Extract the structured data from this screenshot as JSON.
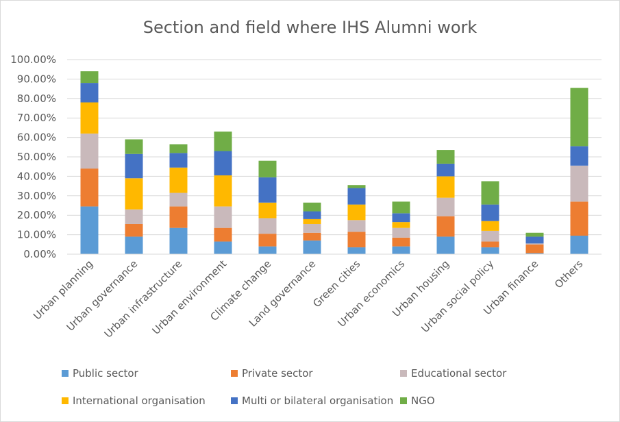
{
  "chart_data": {
    "type": "bar",
    "stacked": true,
    "title": "Section and field where IHS Alumni work",
    "categories": [
      "Urban planning",
      "Urban governance",
      "Urban infrastructure",
      "Urban environment",
      "Climate change",
      "Land governance",
      "Green cities",
      "Urban economics",
      "Urban housing",
      "Urban social policy",
      "Urban finance",
      "Others"
    ],
    "yticks": [
      "0.00%",
      "10.00%",
      "20.00%",
      "30.00%",
      "40.00%",
      "50.00%",
      "60.00%",
      "70.00%",
      "80.00%",
      "90.00%",
      "100.00%"
    ],
    "ylim": [
      0,
      100
    ],
    "grid": true,
    "legend_position": "bottom",
    "series": [
      {
        "name": "Public sector",
        "color": "#5b9bd5",
        "values": [
          24.5,
          9.0,
          13.5,
          6.5,
          4.0,
          7.0,
          3.5,
          4.0,
          9.0,
          3.5,
          0.5,
          9.5
        ]
      },
      {
        "name": "Private sector",
        "color": "#ed7d31",
        "values": [
          19.5,
          6.5,
          11.0,
          7.0,
          6.5,
          4.0,
          8.0,
          4.5,
          10.5,
          3.0,
          4.5,
          17.5
        ]
      },
      {
        "name": "Educational sector",
        "color": "#c9b9bb",
        "values": [
          18.0,
          7.5,
          7.0,
          11.0,
          8.0,
          4.5,
          6.0,
          5.0,
          9.5,
          5.5,
          0.5,
          18.5
        ]
      },
      {
        "name": "International organisation",
        "color": "#ffb800",
        "values": [
          16.0,
          16.0,
          13.0,
          16.0,
          8.0,
          2.5,
          8.0,
          3.0,
          11.0,
          5.0,
          0.0,
          0.0
        ]
      },
      {
        "name": "Multi or bilateral organisation",
        "color": "#4472c4",
        "values": [
          10.0,
          12.5,
          7.5,
          12.5,
          13.0,
          4.0,
          8.5,
          4.5,
          6.5,
          8.5,
          3.5,
          10.0
        ]
      },
      {
        "name": "NGO",
        "color": "#70ad47",
        "values": [
          6.0,
          7.5,
          4.5,
          10.0,
          8.5,
          4.5,
          1.5,
          6.0,
          7.0,
          12.0,
          2.0,
          30.0
        ]
      }
    ]
  }
}
